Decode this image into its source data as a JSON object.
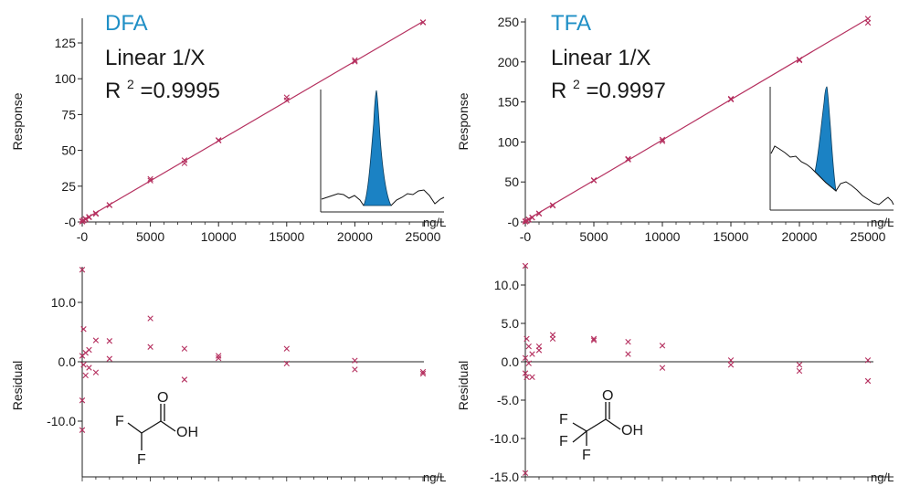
{
  "colors": {
    "title": "#1f8fc6",
    "line": "#b5305f",
    "marker": "#b5305f",
    "peak_fill": "#1b82c4",
    "axis": "#222222",
    "text": "#1a1a1a"
  },
  "chart_data": [
    {
      "type": "scatter",
      "title": "DFA",
      "fit_label": "Linear 1/X",
      "r2_prefix": "R",
      "r2_sup": "2",
      "r2_value": "=0.9995",
      "ylabel": "Response",
      "xunit": "ng/L",
      "xlim": [
        -500,
        26000
      ],
      "ylim": [
        0,
        140
      ],
      "xticks": [
        0,
        5000,
        10000,
        15000,
        20000,
        25000
      ],
      "xtick_labels": [
        "-0",
        "5000",
        "10000",
        "15000",
        "20000",
        "25000"
      ],
      "yticks": [
        0,
        25,
        50,
        75,
        100,
        125
      ],
      "ytick_labels": [
        "-0",
        "25",
        "50",
        "75",
        "100",
        "125"
      ],
      "fit_line": {
        "x": [
          -200,
          25000
        ],
        "y": [
          -0.2,
          140.0
        ]
      },
      "x": [
        0,
        0,
        100,
        100,
        250,
        250,
        500,
        500,
        1000,
        1000,
        2000,
        2000,
        5000,
        5000,
        7500,
        7500,
        10000,
        10000,
        15000,
        15000,
        20000,
        20000,
        25000,
        25000
      ],
      "y": [
        0.3,
        0.6,
        1.0,
        1.3,
        1.8,
        2.2,
        3.2,
        3.6,
        5.6,
        6.1,
        11.7,
        11.9,
        28.9,
        30.1,
        41.0,
        43.1,
        56.9,
        57.2,
        85.0,
        87.0,
        112.0,
        113.0,
        139.3,
        139.5
      ],
      "inset": "chromatogram"
    },
    {
      "type": "scatter",
      "title": "",
      "ylabel": "Residual",
      "xunit": "ng/L",
      "xlim": [
        -500,
        26000
      ],
      "ylim": [
        -22,
        17
      ],
      "yticks": [
        -10,
        0,
        10
      ],
      "ytick_labels": [
        "-10.0",
        "0.0",
        "10.0"
      ],
      "zero_line": true,
      "x": [
        0,
        0,
        0,
        0,
        100,
        100,
        250,
        250,
        500,
        500,
        1000,
        1000,
        2000,
        2000,
        5000,
        5000,
        7500,
        7500,
        10000,
        10000,
        15000,
        15000,
        20000,
        20000,
        25000,
        25000
      ],
      "y": [
        15.5,
        -11.5,
        -6.5,
        1.0,
        5.5,
        -0.5,
        1.5,
        -2.3,
        2.0,
        -1.0,
        3.6,
        -1.8,
        3.5,
        0.5,
        7.3,
        2.5,
        2.2,
        -3.0,
        1.0,
        0.6,
        2.2,
        -0.3,
        0.2,
        -1.3,
        -1.7,
        -2.0
      ],
      "structure": {
        "atoms": [
          "O",
          "OH",
          "F",
          "F"
        ]
      }
    },
    {
      "type": "scatter",
      "title": "TFA",
      "fit_label": "Linear 1/X",
      "r2_prefix": "R",
      "r2_sup": "2",
      "r2_value": "=0.9997",
      "ylabel": "Response",
      "xunit": "ng/L",
      "xlim": [
        -500,
        26000
      ],
      "ylim": [
        0,
        255
      ],
      "xticks": [
        0,
        5000,
        10000,
        15000,
        20000,
        25000
      ],
      "xtick_labels": [
        "-0",
        "5000",
        "10000",
        "15000",
        "20000",
        "25000"
      ],
      "yticks": [
        0,
        50,
        100,
        150,
        200,
        250
      ],
      "ytick_labels": [
        "-0",
        "50",
        "100",
        "150",
        "200",
        "250"
      ],
      "fit_line": {
        "x": [
          -200,
          25000
        ],
        "y": [
          -0.5,
          254.0
        ]
      },
      "x": [
        0,
        0,
        100,
        100,
        250,
        250,
        500,
        500,
        1000,
        1000,
        2000,
        2000,
        5000,
        5000,
        7500,
        7500,
        10000,
        10000,
        15000,
        15000,
        20000,
        20000,
        25000,
        25000
      ],
      "y": [
        0.4,
        0.8,
        1.2,
        1.6,
        2.8,
        3.2,
        5.4,
        5.8,
        10.3,
        10.8,
        20.5,
        21.0,
        51.8,
        52.3,
        78.0,
        79.0,
        101.0,
        103.0,
        153.0,
        154.0,
        202.0,
        203.0,
        249.0,
        254.0
      ],
      "inset": "chromatogram"
    },
    {
      "type": "scatter",
      "title": "",
      "ylabel": "Residual",
      "xunit": "ng/L",
      "xlim": [
        -500,
        26000
      ],
      "ylim": [
        -16,
        13
      ],
      "yticks": [
        -15,
        -10,
        -5,
        0,
        5,
        10
      ],
      "ytick_labels": [
        "-15.0",
        "-10.0",
        "-5.0",
        "0.0",
        "5.0",
        "10.0"
      ],
      "zero_line": true,
      "x": [
        0,
        0,
        0,
        0,
        100,
        100,
        250,
        250,
        500,
        500,
        1000,
        1000,
        2000,
        2000,
        5000,
        5000,
        7500,
        7500,
        10000,
        10000,
        15000,
        15000,
        20000,
        20000,
        25000,
        25000
      ],
      "y": [
        12.5,
        -14.5,
        0.5,
        -1.5,
        3.0,
        -2.0,
        2.0,
        -0.2,
        1.0,
        -2.0,
        2.0,
        1.5,
        3.5,
        3.0,
        3.0,
        2.8,
        2.6,
        1.0,
        2.1,
        -0.8,
        0.2,
        -0.4,
        -0.4,
        -1.2,
        0.2,
        -2.5
      ],
      "structure": {
        "atoms": [
          "O",
          "OH",
          "F",
          "F",
          "F"
        ]
      }
    }
  ]
}
